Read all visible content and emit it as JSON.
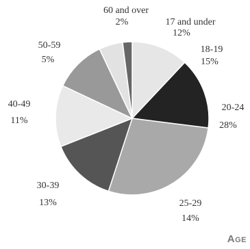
{
  "chart_data": {
    "type": "pie",
    "title": "Age",
    "categories": [
      "17 and under",
      "18-19",
      "20-24",
      "25-29",
      "30-39",
      "40-49",
      "50-59",
      "60 and over"
    ],
    "values": [
      12,
      15,
      28,
      14,
      13,
      11,
      5,
      2
    ],
    "value_labels": [
      "12%",
      "15%",
      "28%",
      "14%",
      "13%",
      "11%",
      "5%",
      "2%"
    ],
    "colors": [
      "#e6e6e6",
      "#232323",
      "#a9a9a9",
      "#555555",
      "#e9e9e9",
      "#999999",
      "#e2e2e2",
      "#666666"
    ]
  }
}
